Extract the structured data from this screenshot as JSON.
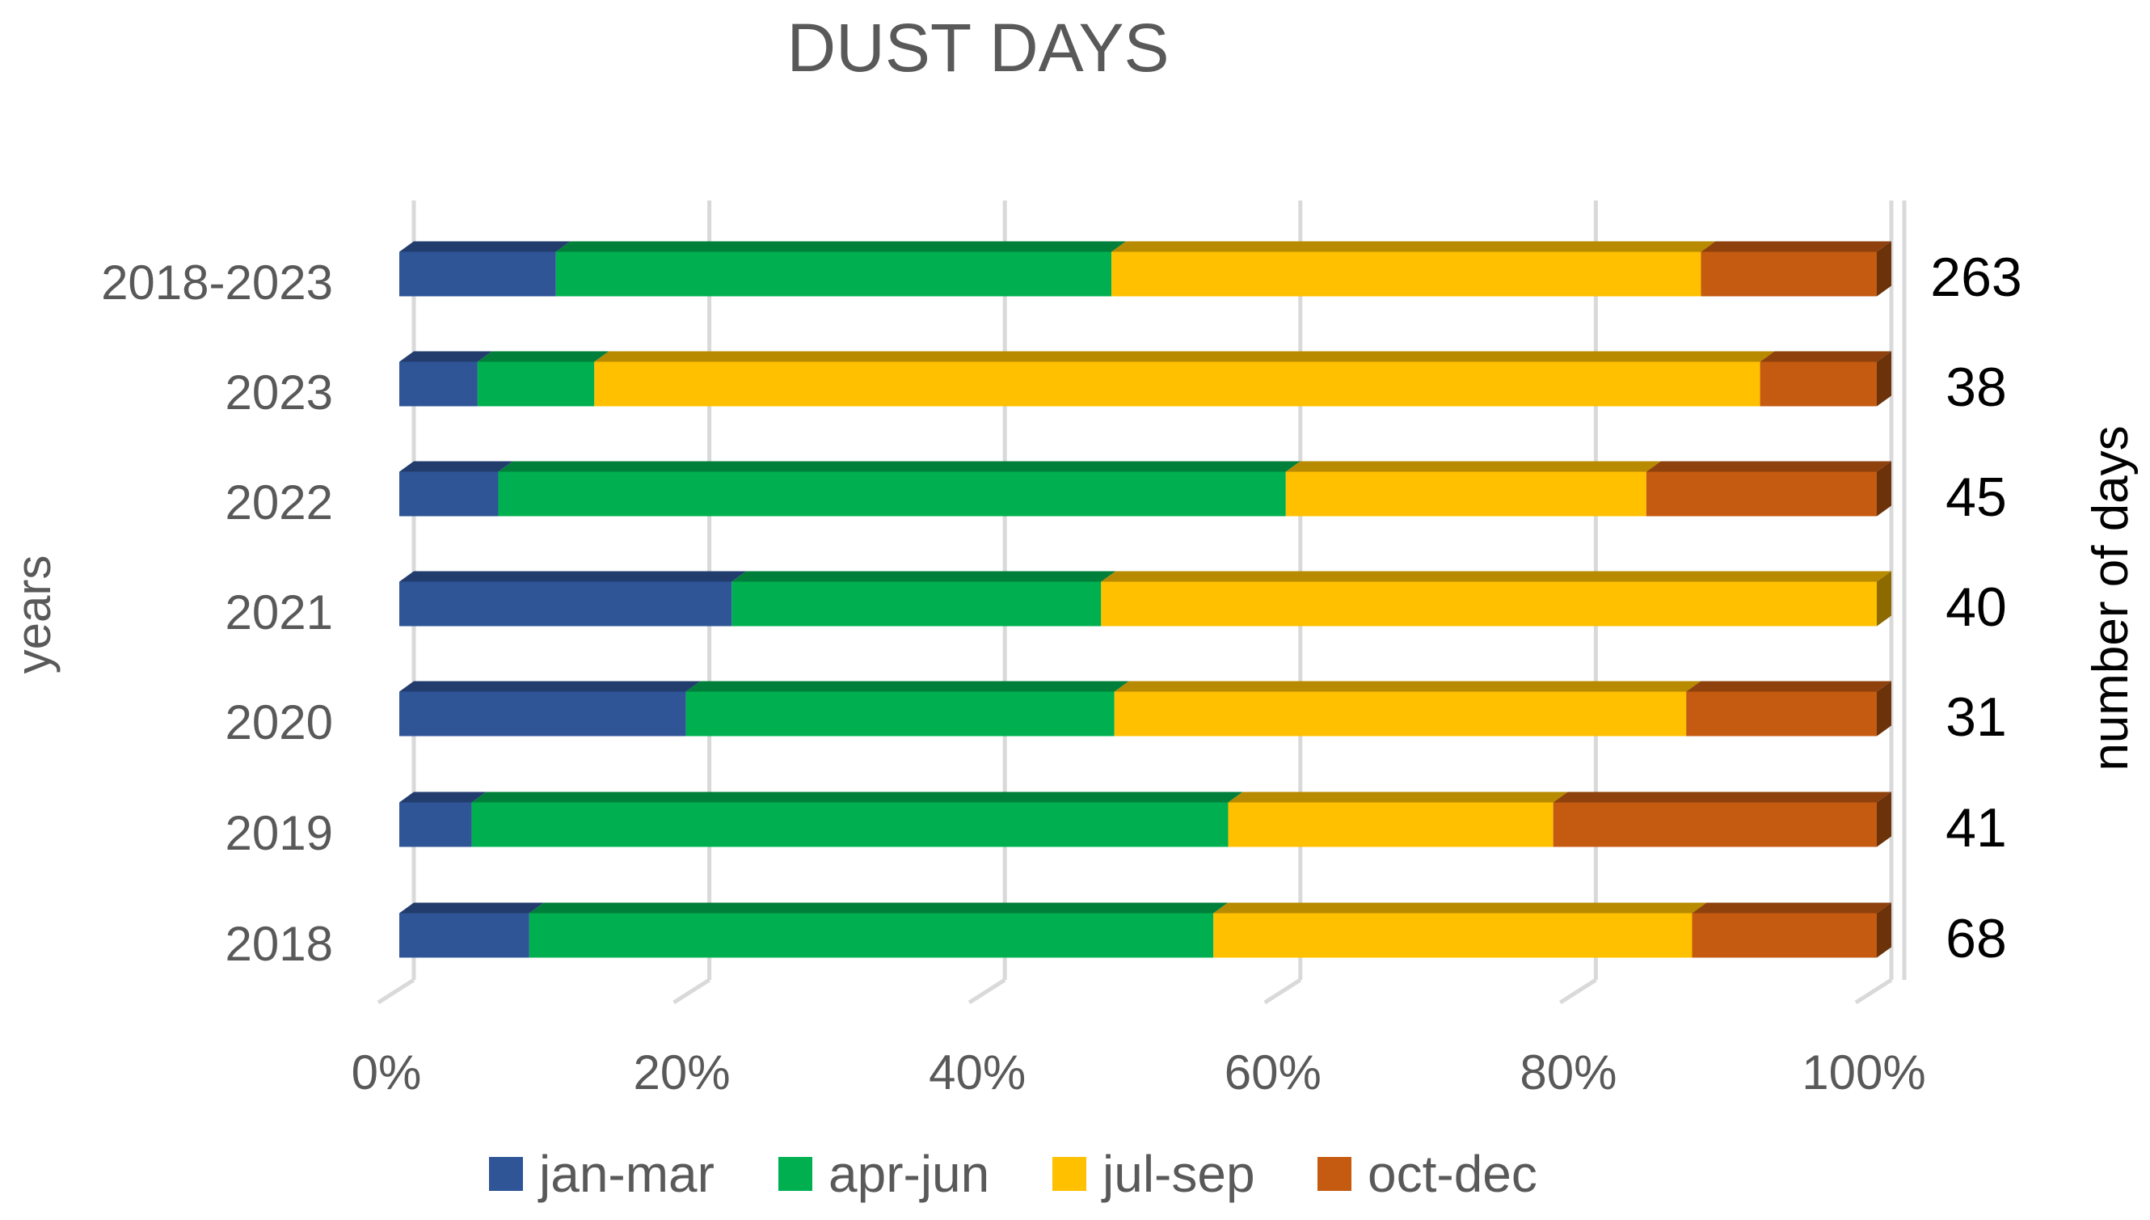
{
  "chart_data": {
    "type": "bar",
    "orientation": "horizontal",
    "stacked": "percent",
    "style": "3d",
    "title": "DUST DAYS",
    "ylabel": "years",
    "y2label": "number of days",
    "categories": [
      "2018-2023",
      "2023",
      "2022",
      "2021",
      "2020",
      "2019",
      "2018"
    ],
    "totals": [
      "263",
      "38",
      "45",
      "40",
      "31",
      "41",
      "68"
    ],
    "xticks": [
      "0%",
      "20%",
      "40%",
      "60%",
      "80%",
      "100%"
    ],
    "xlim": [
      0,
      100
    ],
    "grid": true,
    "legend_position": "bottom",
    "series": [
      {
        "name": "jan-mar",
        "color": "#2f5597",
        "values": [
          10.6,
          5.3,
          6.7,
          22.5,
          19.4,
          4.9,
          8.8
        ]
      },
      {
        "name": "apr-jun",
        "color": "#00b050",
        "values": [
          37.6,
          7.9,
          53.3,
          25.0,
          29.0,
          51.2,
          46.3
        ]
      },
      {
        "name": "jul-sep",
        "color": "#ffc000",
        "values": [
          39.9,
          78.9,
          24.4,
          52.5,
          38.7,
          22.0,
          32.4
        ]
      },
      {
        "name": "oct-dec",
        "color": "#c55a11",
        "values": [
          11.9,
          7.9,
          15.6,
          0.0,
          12.9,
          21.9,
          12.5
        ]
      }
    ]
  }
}
